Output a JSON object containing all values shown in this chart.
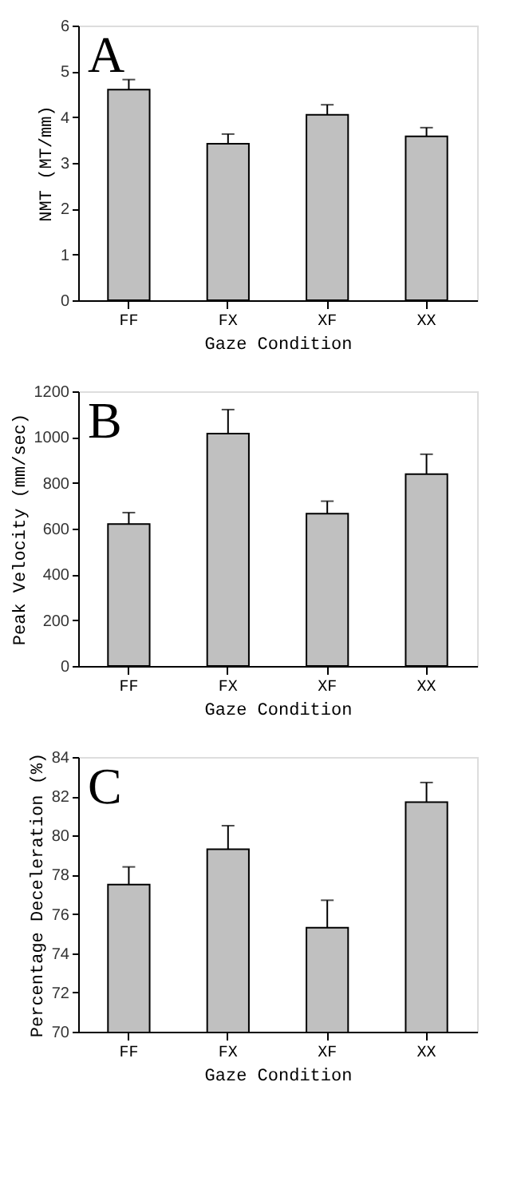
{
  "chart_data": [
    {
      "type": "bar",
      "xlabel": "Gaze Condition",
      "ylabel": "NMT (MT/mm)",
      "annotations": [
        "A"
      ],
      "categories": [
        "FF",
        "FX",
        "XF",
        "XX"
      ],
      "values": [
        4.6,
        3.42,
        4.05,
        3.58
      ],
      "errors": [
        [
          4.6,
          4.82
        ],
        [
          3.42,
          3.63
        ],
        [
          4.05,
          4.27
        ],
        [
          3.58,
          3.77
        ]
      ],
      "color": "#c0c0c0",
      "ylim": [
        0,
        6
      ],
      "yticks": [
        0,
        1,
        2,
        3,
        4,
        5,
        6
      ],
      "grid": false
    },
    {
      "type": "bar",
      "xlabel": "Gaze Condition",
      "ylabel": "Peak Velocity (mm/sec)",
      "annotations": [
        "B"
      ],
      "categories": [
        "FF",
        "FX",
        "XF",
        "XX"
      ],
      "values": [
        620,
        1015,
        665,
        838
      ],
      "errors": [
        [
          620,
          670
        ],
        [
          1015,
          1120
        ],
        [
          665,
          720
        ],
        [
          838,
          925
        ]
      ],
      "color": "#c0c0c0",
      "ylim": [
        0,
        1200
      ],
      "yticks": [
        0,
        200,
        400,
        600,
        800,
        1000,
        1200
      ],
      "grid": false
    },
    {
      "type": "bar",
      "xlabel": "Gaze Condition",
      "ylabel": "Percentage Deceleration (%)",
      "annotations": [
        "C"
      ],
      "categories": [
        "FF",
        "FX",
        "XF",
        "XX"
      ],
      "values": [
        77.5,
        79.3,
        75.3,
        81.7
      ],
      "errors": [
        [
          77.5,
          78.4
        ],
        [
          79.3,
          80.5
        ],
        [
          75.3,
          76.7
        ],
        [
          81.7,
          82.7
        ]
      ],
      "color": "#c0c0c0",
      "ylim": [
        70,
        84
      ],
      "yticks": [
        70,
        72,
        74,
        76,
        78,
        80,
        82,
        84
      ],
      "grid": false
    }
  ]
}
